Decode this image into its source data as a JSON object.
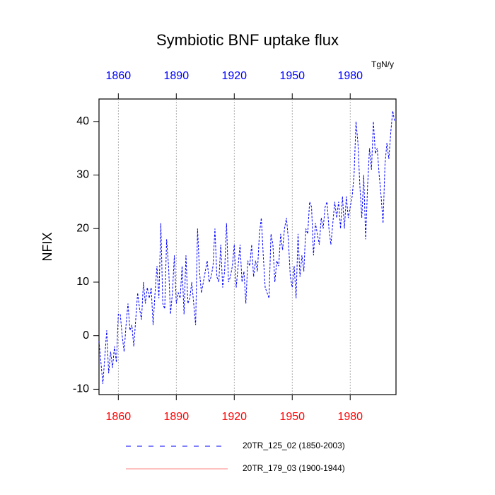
{
  "chart_data": {
    "type": "line",
    "title": "Symbiotic BNF uptake flux",
    "units": "TgN/y",
    "ylabel": "NFIX",
    "xlim": [
      1850,
      2003.7
    ],
    "xticks": [
      1860,
      1890,
      1920,
      1950,
      1980
    ],
    "ylim": [
      -11,
      44.2
    ],
    "yticks": [
      -10,
      0,
      10,
      20,
      30,
      40
    ],
    "grid": "x",
    "x_bottom_tick_color": "red",
    "x_top_tick_color": "blue",
    "x": [
      1850,
      1851,
      1852,
      1853,
      1854,
      1855,
      1856,
      1857,
      1858,
      1859,
      1860,
      1861,
      1862,
      1863,
      1864,
      1865,
      1866,
      1867,
      1868,
      1869,
      1870,
      1871,
      1872,
      1873,
      1874,
      1875,
      1876,
      1877,
      1878,
      1879,
      1880,
      1881,
      1882,
      1883,
      1884,
      1885,
      1886,
      1887,
      1888,
      1889,
      1890,
      1891,
      1892,
      1893,
      1894,
      1895,
      1896,
      1897,
      1898,
      1899,
      1900,
      1901,
      1902,
      1903,
      1904,
      1905,
      1906,
      1907,
      1908,
      1909,
      1910,
      1911,
      1912,
      1913,
      1914,
      1915,
      1916,
      1917,
      1918,
      1919,
      1920,
      1921,
      1922,
      1923,
      1924,
      1925,
      1926,
      1927,
      1928,
      1929,
      1930,
      1931,
      1932,
      1933,
      1934,
      1935,
      1936,
      1937,
      1938,
      1939,
      1940,
      1941,
      1942,
      1943,
      1944,
      1945,
      1946,
      1947,
      1948,
      1949,
      1950,
      1951,
      1952,
      1953,
      1954,
      1955,
      1956,
      1957,
      1958,
      1959,
      1960,
      1961,
      1962,
      1963,
      1964,
      1965,
      1966,
      1967,
      1968,
      1969,
      1970,
      1971,
      1972,
      1973,
      1974,
      1975,
      1976,
      1977,
      1978,
      1979,
      1980,
      1981,
      1982,
      1983,
      1984,
      1985,
      1986,
      1987,
      1988,
      1989,
      1990,
      1991,
      1992,
      1993,
      1994,
      1995,
      1996,
      1997,
      1998,
      1999,
      2000,
      2001,
      2002,
      2003
    ],
    "series": [
      {
        "name": "20TR_125_02 (1850-2003)",
        "color": "#0000ff",
        "dash": true,
        "values": [
          -1,
          -5,
          -9,
          -4,
          1,
          -7,
          -3,
          -6,
          -2,
          -5,
          4,
          4,
          0,
          -3,
          2,
          6,
          1,
          2,
          -2,
          3,
          8,
          5,
          3,
          10,
          6,
          9,
          7,
          9,
          2,
          8,
          13,
          7,
          21,
          6,
          5,
          18,
          13,
          4,
          8,
          15,
          6,
          8,
          7,
          13,
          4,
          15,
          6,
          7,
          10,
          6,
          2,
          20,
          12,
          8,
          10,
          12,
          14,
          10,
          11,
          13,
          20,
          11,
          10,
          17,
          9,
          12,
          21,
          10,
          11,
          13,
          17,
          9,
          13,
          17,
          10,
          12,
          6,
          14,
          13,
          17,
          11,
          14,
          12,
          19,
          22,
          15,
          9,
          8,
          7,
          19,
          17,
          10,
          14,
          13,
          19,
          16,
          20,
          22,
          18,
          11,
          9,
          13,
          7,
          19,
          11,
          15,
          12,
          20,
          19,
          25,
          24,
          15,
          21,
          19,
          17,
          22,
          20,
          24,
          25,
          20,
          17,
          21,
          25,
          22,
          25,
          20,
          26,
          20,
          26,
          22,
          24,
          26,
          30,
          40,
          36,
          28,
          22,
          30,
          18,
          28,
          35,
          31,
          40,
          34,
          35,
          30,
          26,
          21,
          32,
          36,
          33,
          38,
          42,
          40
        ]
      },
      {
        "name": "20TR_179_03 (1900-1944)",
        "color": "#ff8080",
        "dash": false,
        "values": [
          null,
          null,
          null,
          null,
          null,
          null,
          null,
          null,
          null,
          null,
          null,
          null,
          null,
          null,
          null,
          null,
          null,
          null,
          null,
          null,
          null,
          null,
          null,
          null,
          null,
          null,
          null,
          null,
          null,
          null,
          null,
          null,
          null,
          null,
          null,
          null,
          null,
          null,
          null,
          null,
          null,
          null,
          null,
          null,
          null,
          null,
          null,
          null,
          null,
          null,
          null,
          null,
          null,
          null,
          null,
          null,
          null,
          null,
          null,
          null,
          null,
          null,
          null,
          null,
          null,
          null,
          null,
          null,
          null,
          null,
          null,
          null,
          null,
          null,
          null,
          null,
          null,
          null,
          null,
          null,
          null,
          null,
          null,
          null,
          null,
          null,
          null,
          null,
          null,
          null,
          null,
          null,
          null,
          null,
          null,
          null,
          null,
          null,
          null,
          null,
          null,
          null,
          null,
          null,
          null,
          null,
          null,
          null,
          null,
          null,
          null,
          null,
          null,
          null,
          null,
          null,
          null,
          null,
          null,
          null,
          null,
          null,
          null,
          null,
          null,
          null,
          null,
          null,
          null,
          null,
          null,
          null,
          null,
          null,
          null,
          null,
          null,
          null,
          null,
          null,
          null,
          null,
          null,
          null,
          null,
          null,
          null,
          null,
          null,
          null,
          null,
          null,
          null,
          null
        ]
      }
    ]
  }
}
